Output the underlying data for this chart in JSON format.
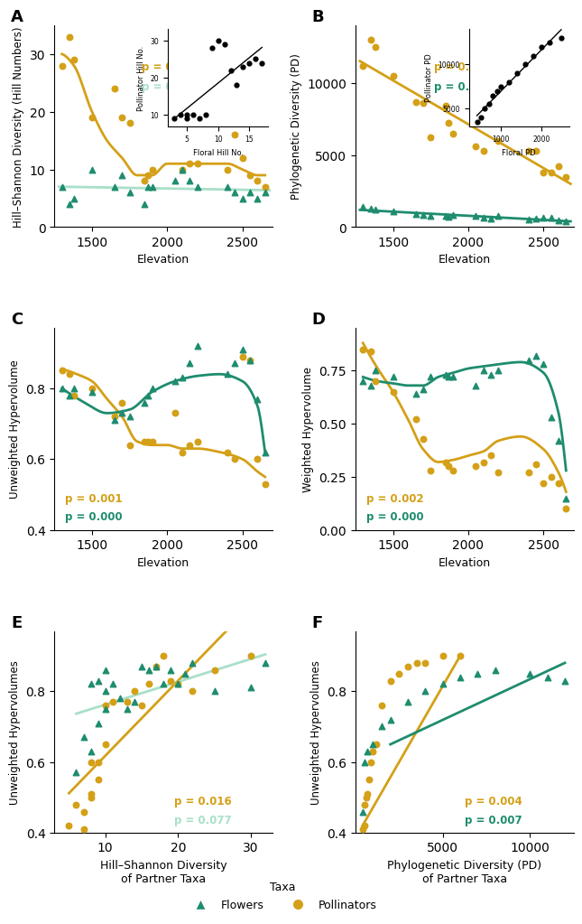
{
  "colors": {
    "pollinator": "#D4A017",
    "flower": "#1E8C6E",
    "flower_line_light": "#A8DFC8",
    "black": "#000000"
  },
  "panel_A": {
    "title": "A",
    "ylabel": "Hill–Shannon Diversity (Hill Numbers)",
    "xlabel": "Elevation",
    "p_pollinator": "p = 0.000",
    "p_flower": "p = 0.292",
    "pollinator_x": [
      1300,
      1350,
      1380,
      1500,
      1650,
      1700,
      1750,
      1850,
      1870,
      1900,
      2050,
      2100,
      2150,
      2200,
      2400,
      2450,
      2500,
      2550,
      2600,
      2650
    ],
    "pollinator_y": [
      28,
      33,
      29,
      19,
      24,
      19,
      18,
      8,
      9,
      10,
      21,
      10,
      11,
      11,
      10,
      16,
      12,
      9,
      8,
      7
    ],
    "flower_x": [
      1300,
      1350,
      1380,
      1500,
      1650,
      1700,
      1750,
      1850,
      1870,
      1900,
      2050,
      2100,
      2150,
      2200,
      2400,
      2450,
      2500,
      2550,
      2600,
      2650
    ],
    "flower_y": [
      7,
      4,
      5,
      10,
      7,
      9,
      6,
      4,
      7,
      7,
      8,
      10,
      8,
      7,
      7,
      6,
      5,
      6,
      5,
      6
    ],
    "ylim": [
      0,
      35
    ],
    "xlim": [
      1250,
      2700
    ],
    "xticks": [
      1500,
      2000,
      2500
    ],
    "yticks": [
      0,
      10,
      20,
      30
    ],
    "poll_curve_x": [
      1300,
      1380,
      1500,
      1600,
      1700,
      1800,
      1900,
      2000,
      2100,
      2200,
      2300,
      2400,
      2500,
      2600,
      2650
    ],
    "poll_curve_y": [
      30,
      28,
      20,
      15,
      12,
      9,
      9,
      11,
      11,
      11,
      11,
      11,
      10,
      9,
      9
    ],
    "flow_curve_x": [
      1300,
      1650,
      2650
    ],
    "flow_curve_y": [
      9.5,
      8.5,
      7.0
    ],
    "inset": {
      "xlabel": "Floral Hill No.",
      "ylabel": "Pollinator Hill No.",
      "x": [
        3,
        4,
        5,
        5,
        6,
        7,
        8,
        9,
        10,
        11,
        12,
        13,
        14,
        15,
        16,
        17
      ],
      "y": [
        9,
        10,
        9,
        10,
        10,
        9,
        10,
        28,
        30,
        29,
        22,
        18,
        23,
        24,
        25,
        24
      ],
      "xticks": [
        5,
        10,
        15
      ],
      "yticks": [
        10,
        20,
        30
      ],
      "xlim": [
        2,
        18
      ],
      "ylim": [
        7,
        33
      ]
    }
  },
  "panel_B": {
    "title": "B",
    "ylabel": "Phylogenetic Diversity (PD)",
    "xlabel": "Elevation",
    "p_pollinator": "p = 0.000",
    "p_flower": "p = 0.010",
    "pollinator_x": [
      1300,
      1350,
      1380,
      1500,
      1650,
      1700,
      1750,
      1850,
      1870,
      1900,
      2050,
      2100,
      2150,
      2200,
      2400,
      2450,
      2500,
      2550,
      2600,
      2650
    ],
    "pollinator_y": [
      11200,
      13000,
      12500,
      10500,
      8700,
      8600,
      6200,
      8400,
      7200,
      6500,
      5600,
      5300,
      7700,
      6000,
      5300,
      5300,
      3800,
      3800,
      4200,
      3500
    ],
    "flower_x": [
      1300,
      1350,
      1380,
      1500,
      1650,
      1700,
      1750,
      1850,
      1870,
      1900,
      2050,
      2100,
      2150,
      2200,
      2400,
      2450,
      2500,
      2550,
      2600,
      2650
    ],
    "flower_y": [
      1400,
      1300,
      1200,
      1100,
      900,
      850,
      750,
      780,
      700,
      850,
      750,
      650,
      600,
      750,
      520,
      580,
      650,
      630,
      480,
      380
    ],
    "ylim": [
      0,
      14000
    ],
    "xlim": [
      1250,
      2700
    ],
    "xticks": [
      1500,
      2000,
      2500
    ],
    "yticks": [
      0,
      5000,
      10000
    ],
    "inset": {
      "xlabel": "Floral PD",
      "ylabel": "Pollinator PD",
      "x": [
        400,
        500,
        600,
        700,
        800,
        900,
        1000,
        1200,
        1400,
        1600,
        1800,
        2000,
        2200,
        2500
      ],
      "y": [
        3500,
        4000,
        5000,
        5500,
        6500,
        7000,
        7500,
        8000,
        9000,
        10000,
        11000,
        12000,
        12500,
        13000
      ],
      "xticks": [
        1000,
        2000
      ],
      "yticks": [
        5000,
        10000
      ],
      "xlim": [
        200,
        2700
      ],
      "ylim": [
        3000,
        14000
      ]
    }
  },
  "panel_C": {
    "title": "C",
    "ylabel": "Unweighted Hypervolume",
    "xlabel": "Elevation",
    "p_pollinator": "p = 0.001",
    "p_flower": "p = 0.000",
    "pollinator_x": [
      1300,
      1350,
      1380,
      1500,
      1650,
      1700,
      1750,
      1850,
      1870,
      1900,
      2050,
      2100,
      2150,
      2200,
      2400,
      2450,
      2500,
      2550,
      2600,
      2650
    ],
    "pollinator_y": [
      0.85,
      0.84,
      0.78,
      0.8,
      0.72,
      0.76,
      0.64,
      0.65,
      0.65,
      0.65,
      0.73,
      0.62,
      0.64,
      0.65,
      0.62,
      0.6,
      0.89,
      0.88,
      0.6,
      0.53
    ],
    "flower_x": [
      1300,
      1350,
      1380,
      1500,
      1650,
      1700,
      1750,
      1850,
      1870,
      1900,
      2050,
      2100,
      2150,
      2200,
      2400,
      2450,
      2500,
      2550,
      2600,
      2650
    ],
    "flower_y": [
      0.8,
      0.78,
      0.8,
      0.79,
      0.71,
      0.73,
      0.72,
      0.76,
      0.78,
      0.8,
      0.82,
      0.83,
      0.87,
      0.92,
      0.84,
      0.87,
      0.91,
      0.88,
      0.77,
      0.62
    ],
    "ylim": [
      0.4,
      0.97
    ],
    "xlim": [
      1250,
      2700
    ],
    "xticks": [
      1500,
      2000,
      2500
    ],
    "yticks": [
      0.4,
      0.6,
      0.8
    ],
    "poll_curve_x": [
      1300,
      1400,
      1500,
      1600,
      1700,
      1800,
      1900,
      2000,
      2100,
      2200,
      2350,
      2500,
      2600,
      2650
    ],
    "poll_curve_y": [
      0.855,
      0.84,
      0.82,
      0.77,
      0.72,
      0.65,
      0.64,
      0.64,
      0.63,
      0.63,
      0.62,
      0.6,
      0.565,
      0.55
    ],
    "flow_curve_x": [
      1300,
      1450,
      1600,
      1750,
      1900,
      2050,
      2200,
      2350,
      2500,
      2600,
      2650
    ],
    "flow_curve_y": [
      0.8,
      0.76,
      0.73,
      0.74,
      0.79,
      0.82,
      0.835,
      0.84,
      0.82,
      0.75,
      0.62
    ]
  },
  "panel_D": {
    "title": "D",
    "ylabel": "Weighted Hypervolume",
    "xlabel": "Elevation",
    "p_pollinator": "p = 0.002",
    "p_flower": "p = 0.000",
    "pollinator_x": [
      1300,
      1350,
      1380,
      1500,
      1650,
      1700,
      1750,
      1850,
      1870,
      1900,
      2050,
      2100,
      2150,
      2200,
      2400,
      2450,
      2500,
      2550,
      2600,
      2650
    ],
    "pollinator_y": [
      0.85,
      0.84,
      0.7,
      0.65,
      0.52,
      0.43,
      0.28,
      0.32,
      0.3,
      0.28,
      0.3,
      0.32,
      0.35,
      0.27,
      0.27,
      0.31,
      0.22,
      0.25,
      0.22,
      0.1
    ],
    "flower_x": [
      1300,
      1350,
      1380,
      1500,
      1650,
      1700,
      1750,
      1850,
      1870,
      1900,
      2050,
      2100,
      2150,
      2200,
      2400,
      2450,
      2500,
      2550,
      2600,
      2650
    ],
    "flower_y": [
      0.7,
      0.68,
      0.75,
      0.72,
      0.64,
      0.66,
      0.72,
      0.73,
      0.72,
      0.72,
      0.68,
      0.75,
      0.73,
      0.75,
      0.8,
      0.82,
      0.78,
      0.53,
      0.42,
      0.15
    ],
    "ylim": [
      0.0,
      0.95
    ],
    "xlim": [
      1250,
      2700
    ],
    "xticks": [
      1500,
      2000,
      2500
    ],
    "yticks": [
      0.0,
      0.25,
      0.5,
      0.75
    ],
    "poll_curve_x": [
      1300,
      1380,
      1500,
      1600,
      1700,
      1800,
      1900,
      2000,
      2100,
      2200,
      2350,
      2500,
      2600,
      2650
    ],
    "poll_curve_y": [
      0.88,
      0.78,
      0.65,
      0.52,
      0.38,
      0.32,
      0.33,
      0.35,
      0.37,
      0.42,
      0.44,
      0.38,
      0.27,
      0.18
    ],
    "flow_curve_x": [
      1300,
      1400,
      1500,
      1600,
      1700,
      1800,
      1900,
      2000,
      2100,
      2200,
      2350,
      2500,
      2600,
      2650
    ],
    "flow_curve_y": [
      0.72,
      0.7,
      0.69,
      0.68,
      0.68,
      0.72,
      0.74,
      0.76,
      0.77,
      0.78,
      0.79,
      0.74,
      0.55,
      0.28
    ]
  },
  "panel_E": {
    "title": "E",
    "ylabel": "Unweighted Hypervolumes",
    "xlabel": "Hill–Shannon Diversity\nof Partner Taxa",
    "p_pollinator": "p = 0.016",
    "p_flower": "p = 0.077",
    "pollinator_x": [
      5,
      6,
      7,
      7,
      8,
      8,
      8,
      9,
      9,
      10,
      10,
      11,
      13,
      14,
      15,
      16,
      17,
      18,
      19,
      20,
      22,
      25,
      30
    ],
    "pollinator_y": [
      0.42,
      0.48,
      0.41,
      0.46,
      0.5,
      0.51,
      0.6,
      0.55,
      0.6,
      0.65,
      0.76,
      0.77,
      0.77,
      0.8,
      0.76,
      0.82,
      0.87,
      0.9,
      0.83,
      0.82,
      0.8,
      0.86,
      0.9
    ],
    "flower_x": [
      6,
      7,
      8,
      8,
      9,
      9,
      10,
      10,
      10,
      11,
      12,
      13,
      14,
      15,
      16,
      17,
      18,
      19,
      20,
      21,
      22,
      25,
      30,
      32
    ],
    "flower_y": [
      0.57,
      0.67,
      0.63,
      0.82,
      0.71,
      0.83,
      0.75,
      0.8,
      0.86,
      0.82,
      0.78,
      0.75,
      0.77,
      0.87,
      0.86,
      0.87,
      0.82,
      0.86,
      0.82,
      0.85,
      0.88,
      0.8,
      0.81,
      0.88
    ],
    "ylim": [
      0.4,
      0.97
    ],
    "xlim": [
      3,
      33
    ],
    "xticks": [
      10,
      20,
      30
    ],
    "yticks": [
      0.4,
      0.6,
      0.8
    ],
    "poll_line_x": [
      5,
      30
    ],
    "poll_line_y": [
      0.58,
      0.88
    ],
    "flow_line_x": [
      5,
      32
    ],
    "flow_line_y": [
      0.7,
      0.85
    ]
  },
  "panel_F": {
    "title": "F",
    "ylabel": "Unweighted Hypervolumes",
    "xlabel": "Phylogenetic Diversity (PD)\nof Partner Taxa",
    "p_pollinator": "p = 0.004",
    "p_flower": "p = 0.007",
    "pollinator_x": [
      400,
      500,
      500,
      600,
      700,
      800,
      900,
      1000,
      1200,
      1500,
      2000,
      2500,
      3000,
      3500,
      4000,
      5000,
      6000
    ],
    "pollinator_y": [
      0.41,
      0.42,
      0.48,
      0.5,
      0.51,
      0.55,
      0.6,
      0.63,
      0.65,
      0.76,
      0.83,
      0.85,
      0.87,
      0.88,
      0.88,
      0.9,
      0.9
    ],
    "flower_x": [
      400,
      500,
      700,
      1000,
      1500,
      2000,
      3000,
      4000,
      5000,
      6000,
      7000,
      8000,
      10000,
      11000,
      12000
    ],
    "flower_y": [
      0.46,
      0.6,
      0.63,
      0.65,
      0.7,
      0.72,
      0.77,
      0.8,
      0.82,
      0.84,
      0.85,
      0.86,
      0.85,
      0.84,
      0.83
    ],
    "ylim": [
      0.4,
      0.97
    ],
    "xlim": [
      0,
      12500
    ],
    "xticks": [
      5000,
      10000
    ],
    "yticks": [
      0.4,
      0.6,
      0.8
    ],
    "poll_line_x": [
      400,
      6000
    ],
    "poll_line_y": [
      0.42,
      0.9
    ],
    "flow_line_x": [
      2000,
      12000
    ],
    "flow_line_y": [
      0.65,
      0.88
    ]
  }
}
